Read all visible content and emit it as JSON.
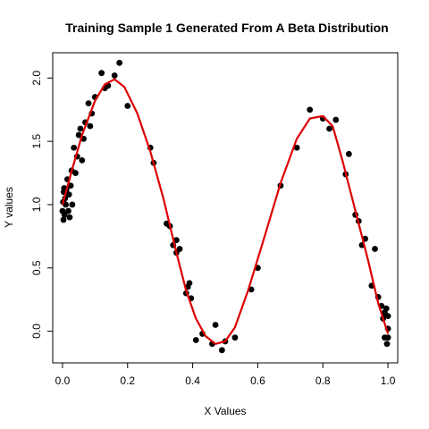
{
  "chart_data": {
    "type": "scatter",
    "title": "Training Sample 1 Generated From A Beta Distribution",
    "xlabel": "X Values",
    "ylabel": "Y values",
    "xlim": [
      -0.03,
      1.03
    ],
    "ylim": [
      -0.25,
      2.2
    ],
    "x_ticks": [
      0.0,
      0.2,
      0.4,
      0.6,
      0.8,
      1.0
    ],
    "x_tick_labels": [
      "0.0",
      "0.2",
      "0.4",
      "0.6",
      "0.8",
      "1.0"
    ],
    "y_ticks": [
      0.0,
      0.5,
      1.0,
      1.5,
      2.0
    ],
    "y_tick_labels": [
      "0.0",
      "0.5",
      "1.0",
      "1.5",
      "2.0"
    ],
    "grid": false,
    "points": {
      "color": "#000000",
      "x": [
        0.0,
        0.002,
        0.003,
        0.004,
        0.005,
        0.006,
        0.008,
        0.01,
        0.012,
        0.015,
        0.018,
        0.02,
        0.022,
        0.025,
        0.028,
        0.03,
        0.035,
        0.04,
        0.045,
        0.05,
        0.055,
        0.06,
        0.065,
        0.07,
        0.08,
        0.085,
        0.09,
        0.1,
        0.12,
        0.13,
        0.14,
        0.16,
        0.175,
        0.2,
        0.27,
        0.28,
        0.32,
        0.33,
        0.34,
        0.35,
        0.35,
        0.36,
        0.38,
        0.385,
        0.39,
        0.395,
        0.41,
        0.43,
        0.46,
        0.47,
        0.49,
        0.5,
        0.53,
        0.58,
        0.6,
        0.67,
        0.72,
        0.76,
        0.8,
        0.82,
        0.84,
        0.87,
        0.88,
        0.9,
        0.91,
        0.92,
        0.93,
        0.95,
        0.96,
        0.97,
        0.98,
        0.985,
        0.99,
        0.992,
        0.995,
        0.997,
        1.0,
        1.0,
        1.0,
        0.99
      ],
      "y": [
        0.95,
        1.02,
        0.88,
        1.1,
        1.13,
        0.92,
        1.05,
        1.0,
        1.12,
        1.2,
        0.95,
        1.08,
        0.9,
        1.15,
        1.27,
        1.0,
        1.45,
        1.25,
        1.38,
        1.55,
        1.6,
        1.35,
        1.52,
        1.65,
        1.8,
        1.62,
        1.72,
        1.85,
        2.04,
        1.92,
        1.94,
        2.02,
        2.12,
        1.78,
        1.45,
        1.33,
        0.85,
        0.83,
        0.68,
        0.72,
        0.62,
        0.65,
        0.3,
        0.35,
        0.38,
        0.26,
        -0.07,
        -0.02,
        -0.1,
        0.05,
        -0.15,
        -0.08,
        -0.05,
        0.33,
        0.5,
        1.15,
        1.45,
        1.75,
        1.68,
        1.6,
        1.67,
        1.24,
        1.4,
        0.92,
        0.87,
        0.68,
        0.73,
        0.36,
        0.65,
        0.27,
        0.2,
        0.1,
        -0.05,
        0.13,
        0.18,
        -0.1,
        0.02,
        0.12,
        -0.05,
        0.15
      ]
    },
    "fit_line": {
      "color": "#dd0000",
      "x": [
        0.0,
        0.03,
        0.06,
        0.1,
        0.13,
        0.16,
        0.19,
        0.23,
        0.27,
        0.31,
        0.35,
        0.38,
        0.41,
        0.44,
        0.47,
        0.5,
        0.53,
        0.57,
        0.62,
        0.67,
        0.72,
        0.76,
        0.8,
        0.83,
        0.86,
        0.9,
        0.94,
        0.97,
        1.0
      ],
      "y": [
        1.0,
        1.28,
        1.55,
        1.82,
        1.95,
        1.99,
        1.93,
        1.72,
        1.42,
        1.05,
        0.62,
        0.32,
        0.1,
        -0.04,
        -0.1,
        -0.08,
        0.03,
        0.32,
        0.74,
        1.17,
        1.52,
        1.68,
        1.7,
        1.62,
        1.35,
        0.95,
        0.55,
        0.22,
        -0.02
      ]
    }
  }
}
